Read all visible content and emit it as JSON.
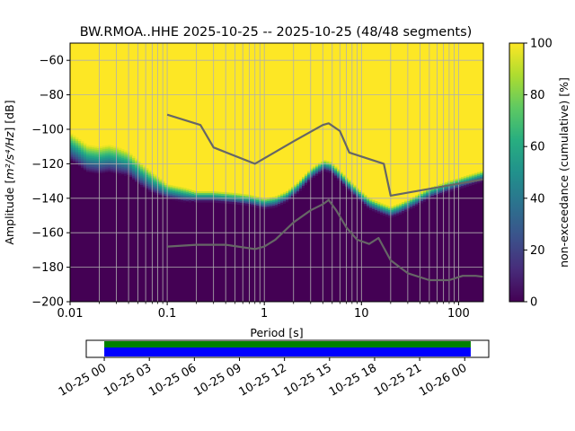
{
  "chart_data": {
    "type": "heatmap",
    "title": "BW.RMOA..HHE   2025-10-25 -- 2025-10-25  (48/48 segments)",
    "xlabel": "Period [s]",
    "ylabel_prefix": "Amplitude [",
    "ylabel_unit": "m²/s⁴/Hz",
    "ylabel_suffix": "] [dB]",
    "x_scale": "log",
    "xlim": [
      0.01,
      180
    ],
    "ylim": [
      -200,
      -50
    ],
    "x_ticks": [
      0.01,
      0.1,
      1,
      10,
      100
    ],
    "x_tick_labels": [
      "0.01",
      "0.1",
      "1",
      "10",
      "100"
    ],
    "y_ticks": [
      -200,
      -180,
      -160,
      -140,
      -120,
      -100,
      -80,
      -60
    ],
    "y_tick_labels": [
      "−200",
      "−180",
      "−160",
      "−140",
      "−120",
      "−100",
      "−80",
      "−60"
    ],
    "grid": true,
    "colorbar": {
      "label": "non-exceedance (cumulative) [%]",
      "ticks": [
        0,
        20,
        40,
        60,
        80,
        100
      ],
      "tick_labels": [
        "0",
        "20",
        "40",
        "60",
        "80",
        "100"
      ],
      "colormap": "viridis"
    },
    "ppsd_transition": {
      "period": [
        0.01,
        0.012,
        0.015,
        0.02,
        0.025,
        0.03,
        0.04,
        0.05,
        0.07,
        0.1,
        0.15,
        0.2,
        0.3,
        0.5,
        0.7,
        1.0,
        1.3,
        1.7,
        2.2,
        3.0,
        3.8,
        4.2,
        4.8,
        5.5,
        7.0,
        9.0,
        12.0,
        16.0,
        20.0,
        25.0,
        35.0,
        50.0,
        80.0,
        120.0,
        180.0
      ],
      "noise_db": [
        -110,
        -113,
        -117,
        -118,
        -117,
        -118,
        -120,
        -125,
        -131,
        -136,
        -138,
        -139,
        -139,
        -140,
        -141,
        -143,
        -142,
        -139,
        -134,
        -126,
        -122,
        -121,
        -122,
        -125,
        -131,
        -137,
        -143,
        -146,
        -148,
        -146,
        -142,
        -137,
        -133,
        -130,
        -127
      ],
      "spread_db": [
        8,
        8,
        8,
        8,
        8,
        8,
        7,
        7,
        6,
        4,
        4,
        3,
        3,
        3,
        3,
        3,
        3,
        3,
        3,
        3,
        3,
        3,
        3,
        3,
        3,
        3,
        3,
        3,
        3,
        3,
        3,
        3,
        3,
        3,
        3
      ]
    },
    "series": [
      {
        "x": [
          0.1,
          0.22,
          0.3,
          0.8,
          2.0,
          4.0,
          4.6,
          6.0,
          7.5,
          17.0,
          20.0,
          180.0
        ],
        "y": [
          -91.5,
          -97.5,
          -110.5,
          -120,
          -107,
          -97.5,
          -96.5,
          -101,
          -113.5,
          -120,
          -138.5,
          -129
        ]
      },
      {
        "x": [
          0.1,
          0.2,
          0.4,
          0.8,
          1.0,
          1.3,
          2.0,
          3.0,
          4.0,
          4.6,
          5.5,
          7.0,
          9.0,
          12.0,
          15.0,
          20.0,
          30.0,
          50.0,
          80.0,
          110.0,
          150.0,
          180.0
        ],
        "y": [
          -168,
          -167,
          -167,
          -169.5,
          -168,
          -164,
          -154,
          -147,
          -143.5,
          -141,
          -147,
          -157,
          -164,
          -166.5,
          -163,
          -176,
          -183.5,
          -187.5,
          -187.5,
          -185,
          -185,
          -185.5
        ]
      }
    ],
    "coverage": {
      "ticks": [
        "10-25 00",
        "10-25 03",
        "10-25 06",
        "10-25 09",
        "10-25 12",
        "10-25 15",
        "10-25 18",
        "10-25 21",
        "10-26 00"
      ],
      "tick_hours": [
        0,
        3,
        6,
        9,
        12,
        15,
        18,
        21,
        24
      ],
      "hour_range": [
        -1.2,
        25.6
      ],
      "data_hours": [
        0,
        24.4
      ],
      "bar_colors": {
        "top": "#008000",
        "bottom": "#0000ff"
      }
    }
  }
}
